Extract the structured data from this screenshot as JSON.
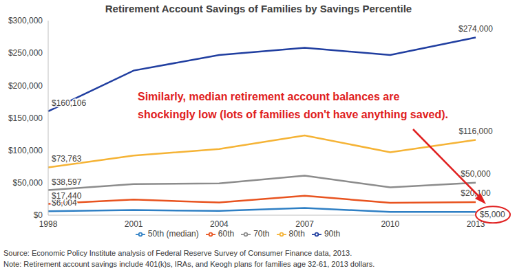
{
  "chart_data": {
    "type": "line",
    "title": "Retirement Account Savings of Families by Savings Percentile",
    "categories": [
      "1998",
      "2001",
      "2004",
      "2007",
      "2010",
      "2013"
    ],
    "series": [
      {
        "name": "50th (median)",
        "color": "#2e7fc4",
        "values": [
          6004,
          8000,
          6500,
          11000,
          5000,
          5000
        ],
        "value_labels": [
          "$6,004",
          null,
          null,
          null,
          null,
          "$5,000"
        ]
      },
      {
        "name": "60th",
        "color": "#e8531f",
        "values": [
          17440,
          24000,
          19500,
          30000,
          19000,
          20100
        ],
        "value_labels": [
          "$17,440",
          null,
          null,
          null,
          null,
          "$20,100"
        ]
      },
      {
        "name": "70th",
        "color": "#8c8c8c",
        "values": [
          38597,
          48000,
          49000,
          61000,
          43000,
          50000
        ],
        "value_labels": [
          "$38,597",
          null,
          null,
          null,
          null,
          "$50,000"
        ]
      },
      {
        "name": "80th",
        "color": "#f5b335",
        "values": [
          73763,
          92000,
          102000,
          123000,
          97000,
          116000
        ],
        "value_labels": [
          "$73,763",
          null,
          null,
          null,
          null,
          "$116,000"
        ]
      },
      {
        "name": "90th",
        "color": "#203ea0",
        "values": [
          160106,
          223000,
          247000,
          258000,
          247000,
          274000
        ],
        "value_labels": [
          "$160,106",
          null,
          null,
          null,
          null,
          "$274,000"
        ]
      }
    ],
    "ylim": [
      0,
      300000
    ],
    "yticks": [
      {
        "value": 0,
        "label": "$0"
      },
      {
        "value": 50000,
        "label": "$50,000"
      },
      {
        "value": 100000,
        "label": "$100,000"
      },
      {
        "value": 150000,
        "label": "$150,000"
      },
      {
        "value": 200000,
        "label": "$200,000"
      },
      {
        "value": 250000,
        "label": "$250,000"
      },
      {
        "value": 300000,
        "label": "$300,000"
      }
    ],
    "grid": false,
    "legend": "bottom",
    "data_labels": true,
    "annotations": [
      "Similarly, median retirement account balances are",
      "shockingly low (lots of families don't have anything saved)."
    ],
    "source": "Source: Economic Policy Institute analysis of Federal Reserve Survey of Consumer Finance data, 2013.",
    "note": "Note: Retirement account savings include 401(k)s, IRAs, and Keogh plans for families age 32-61, 2013 dollars."
  }
}
